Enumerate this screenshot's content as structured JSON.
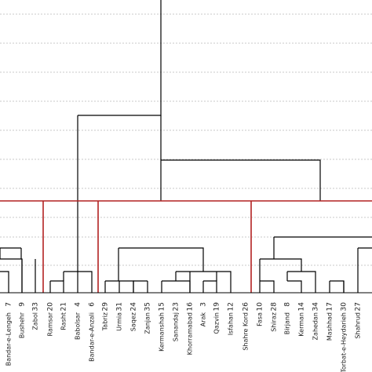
{
  "chart_data": {
    "type": "dendrogram",
    "leaves": [
      {
        "num": "7",
        "name": "Bandar-e-Lengeh"
      },
      {
        "num": "9",
        "name": "Bushehr"
      },
      {
        "num": "33",
        "name": "Zabol"
      },
      {
        "num": "20",
        "name": "Ramsar"
      },
      {
        "num": "21",
        "name": "Rasht"
      },
      {
        "num": "4",
        "name": "Babolsar"
      },
      {
        "num": "6",
        "name": "Bandar-e-Anzali"
      },
      {
        "num": "29",
        "name": "Tabriz"
      },
      {
        "num": "31",
        "name": "Urmia"
      },
      {
        "num": "24",
        "name": "Saqez"
      },
      {
        "num": "35",
        "name": "Zanjan"
      },
      {
        "num": "15",
        "name": "Kermanshah"
      },
      {
        "num": "23",
        "name": "Sanandaj"
      },
      {
        "num": "16",
        "name": "Khorramabad"
      },
      {
        "num": "3",
        "name": "Arak"
      },
      {
        "num": "19",
        "name": "Qazvin"
      },
      {
        "num": "12",
        "name": "Isfahan"
      },
      {
        "num": "26",
        "name": "Shahre Kord"
      },
      {
        "num": "10",
        "name": "Fasa"
      },
      {
        "num": "28",
        "name": "Shiraz"
      },
      {
        "num": "8",
        "name": "Birjand"
      },
      {
        "num": "14",
        "name": "Kerman"
      },
      {
        "num": "34",
        "name": "Zahedan"
      },
      {
        "num": "17",
        "name": "Mashhad"
      },
      {
        "num": "30",
        "name": "Torbat-e-Heydarieh"
      },
      {
        "num": "27",
        "name": "Shahrud"
      }
    ],
    "cut_line": {
      "color": "#b22222"
    },
    "link_color": "#000000",
    "grid": true
  }
}
